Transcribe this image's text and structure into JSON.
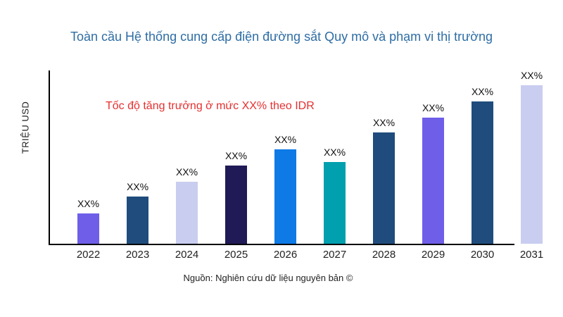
{
  "page": {
    "background": "#ffffff"
  },
  "chart_data": {
    "type": "bar",
    "title": "Toàn cầu Hệ thống cung cấp điện đường sắt Quy mô và phạm vi thị trường",
    "title_color": "#2e6da4",
    "ylabel": "TRIỆU USD",
    "xlabel": "",
    "categories": [
      "2022",
      "2023",
      "2024",
      "2025",
      "2026",
      "2027",
      "2028",
      "2029",
      "2030",
      "2031"
    ],
    "value_labels": [
      "XX%",
      "XX%",
      "XX%",
      "XX%",
      "XX%",
      "XX%",
      "XX%",
      "XX%",
      "XX%",
      "XX%"
    ],
    "values_relative": [
      43,
      67,
      88,
      111,
      134,
      116,
      158,
      179,
      202,
      225
    ],
    "bar_colors": [
      "#6f5fe8",
      "#1f4c7c",
      "#c9cdf0",
      "#201a56",
      "#0e7ae6",
      "#00a0af",
      "#1f4c7c",
      "#6f5fe8",
      "#1f4c7c",
      "#c9cdf0"
    ],
    "annotation": {
      "text": "Tốc độ tăng trưởng ở mức XX% theo IDR",
      "color": "#e63030"
    },
    "source": "Nguồn: Nghiên cứu dữ liệu nguyên bản ©",
    "axis_color": "#000000",
    "grid": false,
    "legend": false
  }
}
